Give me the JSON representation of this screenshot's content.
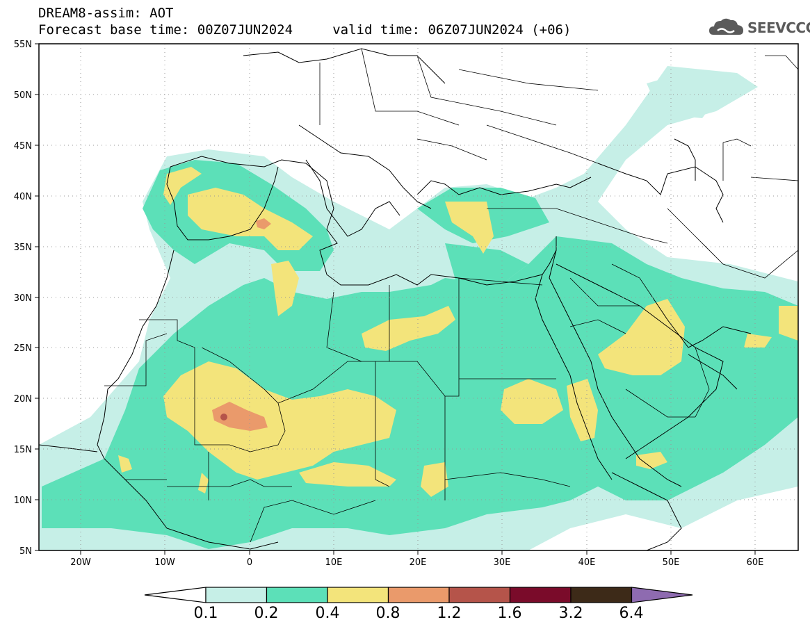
{
  "header": {
    "line1": "DREAM8-assim: AOT",
    "line2": "Forecast base time: 00Z07JUN2024     valid time: 06Z07JUN2024 (+06)"
  },
  "logo": {
    "text": "SEEVCCC",
    "icon": "cloud-icon"
  },
  "map": {
    "lat_labels": [
      "55N",
      "50N",
      "45N",
      "40N",
      "35N",
      "30N",
      "25N",
      "20N",
      "15N",
      "10N",
      "5N"
    ],
    "lon_labels": [
      "20W",
      "10W",
      "0",
      "10E",
      "20E",
      "30E",
      "40E",
      "50E",
      "60E"
    ],
    "lat_range": [
      5,
      55
    ],
    "lon_range": [
      -25,
      65
    ],
    "gridlines": "dotted"
  },
  "colorbar": {
    "labels": [
      "0.1",
      "0.2",
      "0.4",
      "0.8",
      "1.2",
      "1.6",
      "3.2",
      "6.4"
    ],
    "colors": [
      "#ffffff",
      "#c6efe7",
      "#5ce0b8",
      "#f3e47b",
      "#ea9a6b",
      "#b5544a",
      "#7a0b2a",
      "#3d2a18",
      "#8e6bb0"
    ]
  }
}
